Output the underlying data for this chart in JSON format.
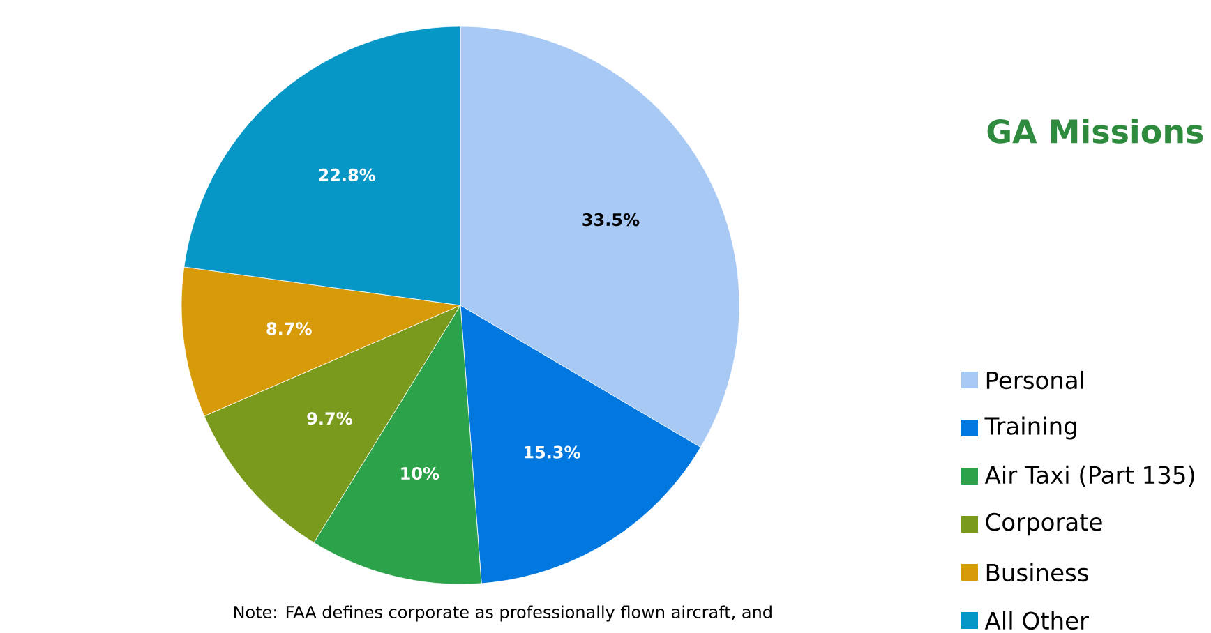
{
  "chart_data": {
    "type": "pie",
    "title": "GA Missions",
    "categories": [
      "Personal",
      "Training",
      "Air Taxi (Part 135)",
      "Corporate",
      "Business",
      "All Other"
    ],
    "values": [
      33.5,
      15.3,
      10,
      9.7,
      8.7,
      22.8
    ],
    "value_labels": [
      "33.5%",
      "15.3%",
      "10%",
      "9.7%",
      "8.7%",
      "22.8%"
    ],
    "colors": [
      "#a9c9f5",
      "#0078e0",
      "#2ca24a",
      "#7a9a1e",
      "#d79a08",
      "#0797c6"
    ],
    "legend": "right",
    "annotations": [
      "Note: FAA defines corporate as professionally flown aircraft, and"
    ]
  }
}
